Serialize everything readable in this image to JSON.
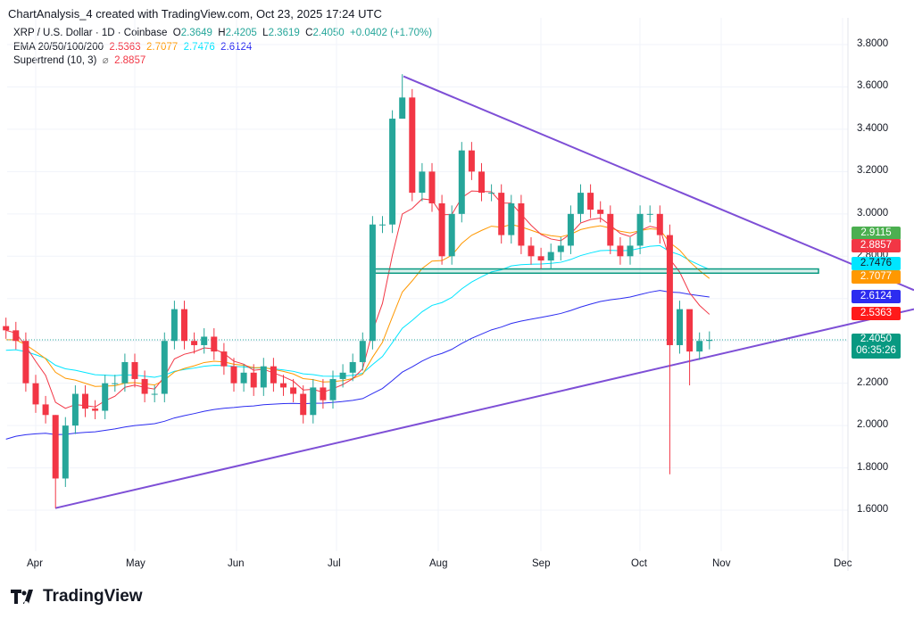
{
  "header": {
    "credit": "ChartAnalysis_4 created with TradingView.com, Oct 23, 2025 17:24 UTC"
  },
  "legend": {
    "symbol": "XRP / U.S. Dollar · 1D · Coinbase",
    "o_label": "O",
    "o": "2.3649",
    "h_label": "H",
    "h": "2.4205",
    "l_label": "L",
    "l": "2.3619",
    "c_label": "C",
    "c": "2.4050",
    "change": "+0.0402 (+1.70%)",
    "ema_label": "EMA 20/50/100/200",
    "ema20": "2.5363",
    "ema50": "2.7077",
    "ema100": "2.7476",
    "ema200": "2.6124",
    "st_label": "Supertrend (10, 3)",
    "st_icon": "⌀",
    "st": "2.8857"
  },
  "colors": {
    "up": "#26a69a",
    "down": "#f23645",
    "ema20": "#f23645",
    "ema50": "#ff9800",
    "ema100": "#00e5ff",
    "ema200": "#2c2cf0",
    "trend": "#7e4fd6",
    "zone": "#089981"
  },
  "chart_data": {
    "type": "candlestick",
    "title": "XRP / U.S. Dollar · 1D · Coinbase",
    "ylim": [
      1.5,
      3.85
    ],
    "y_ticks": [
      "3.8000",
      "3.6000",
      "3.4000",
      "3.2000",
      "3.0000",
      "2.8000",
      "2.2000",
      "2.0000",
      "1.8000",
      "1.6000"
    ],
    "x_ticks": [
      "Apr",
      "May",
      "Jun",
      "Jul",
      "Aug",
      "Sep",
      "Oct",
      "Nov",
      "Dec"
    ],
    "start": "Mar 23",
    "interval_days": 3,
    "closes": [
      2.45,
      2.4,
      2.2,
      2.1,
      2.05,
      1.75,
      2.0,
      2.15,
      2.08,
      2.07,
      2.2,
      2.2,
      2.3,
      2.22,
      2.15,
      2.15,
      2.4,
      2.55,
      2.4,
      2.38,
      2.42,
      2.35,
      2.28,
      2.2,
      2.25,
      2.18,
      2.28,
      2.2,
      2.18,
      2.15,
      2.05,
      2.18,
      2.12,
      2.22,
      2.25,
      2.3,
      2.4,
      2.95,
      2.95,
      3.45,
      3.55,
      3.1,
      3.2,
      3.05,
      2.8,
      3.0,
      3.3,
      3.2,
      3.1,
      3.1,
      2.9,
      3.05,
      2.85,
      2.8,
      2.78,
      2.82,
      2.85,
      3.0,
      3.1,
      3.02,
      3.0,
      2.85,
      2.8,
      2.85,
      3.0,
      3.0,
      2.9,
      2.38,
      2.55,
      2.35,
      2.4,
      2.405
    ],
    "wick_overrides": {
      "5": [
        1.61,
        2.05
      ],
      "40": [
        3.45,
        3.66
      ],
      "67": [
        1.77,
        2.95
      ],
      "69": [
        2.19,
        2.45
      ]
    },
    "price_tags": [
      {
        "value": "2.9115",
        "color": "#4caf50"
      },
      {
        "value": "2.8857",
        "color": "#f23645"
      },
      {
        "value": "2.7476",
        "color": "#00e5ff",
        "text": "#131722"
      },
      {
        "value": "2.7077",
        "color": "#ff9800"
      },
      {
        "value": "2.6124",
        "color": "#2c2cf0"
      },
      {
        "value": "2.5363",
        "color": "#ff1a1a"
      }
    ],
    "last_price": "2.4050",
    "countdown": "06:35:26",
    "annotations": {
      "support_zone": [
        2.72,
        2.74
      ],
      "descending_trendline": [
        [
          3.65,
          "Jul 20"
        ],
        [
          2.64,
          "Nov 28"
        ]
      ],
      "ascending_trendline": [
        [
          1.61,
          "Apr 7"
        ],
        [
          2.55,
          "Nov 28"
        ]
      ]
    }
  },
  "branding": {
    "logo": "TradingView"
  }
}
